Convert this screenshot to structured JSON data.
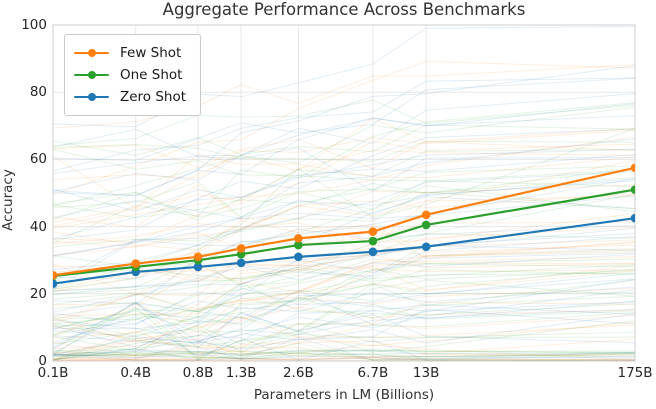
{
  "figure": {
    "title": "Aggregate Performance Across Benchmarks",
    "text_color": "#333333",
    "tick_text_color": "#262626",
    "grid_color": "#e7e7e7",
    "spine_color": "#cccccc",
    "background_color": "#ffffff"
  },
  "chart_data": {
    "type": "line",
    "title": "Aggregate Performance Across Benchmarks",
    "xlabel": "Parameters in LM (Billions)",
    "ylabel": "Accuracy",
    "x_scale": "log",
    "x_values": [
      0.125,
      0.35,
      0.76,
      1.3,
      2.65,
      6.7,
      13,
      175
    ],
    "x_tick_labels": [
      "0.1B",
      "0.4B",
      "0.8B",
      "1.3B",
      "2.6B",
      "6.7B",
      "13B",
      "175B"
    ],
    "ylim": [
      0,
      100
    ],
    "y_ticks": [
      0,
      20,
      40,
      60,
      80,
      100
    ],
    "grid": true,
    "legend_position": "upper left",
    "legend_entries": [
      "Few Shot",
      "One Shot",
      "Zero Shot"
    ],
    "series": [
      {
        "name": "Few Shot",
        "color": "#ff7f0e",
        "values": [
          25.5,
          29.0,
          31.0,
          33.5,
          36.5,
          38.5,
          43.5,
          57.5
        ]
      },
      {
        "name": "One Shot",
        "color": "#2ca02c",
        "values": [
          25.3,
          28.0,
          30.0,
          31.8,
          34.5,
          35.7,
          40.5,
          51.0
        ]
      },
      {
        "name": "Zero Shot",
        "color": "#1f77b4",
        "values": [
          23.0,
          26.5,
          28.0,
          29.2,
          31.0,
          32.5,
          34.0,
          42.5
        ]
      }
    ],
    "background_lines": {
      "note": "faint individual-benchmark curves behind the aggregate lines",
      "per_series": 42,
      "opacity": 0.13,
      "colors": [
        "#ff7f0e",
        "#2ca02c",
        "#1f77b4"
      ],
      "seed": 11
    }
  }
}
